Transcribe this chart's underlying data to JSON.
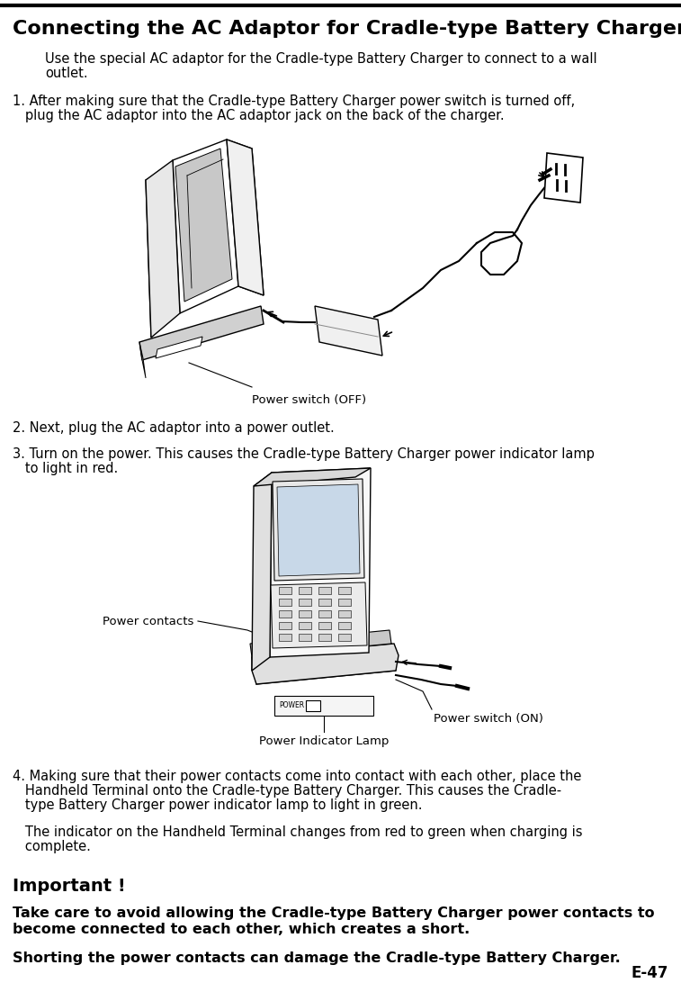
{
  "page_title": "Connecting the AC Adaptor for Cradle-type Battery Charger",
  "bg_color": "#ffffff",
  "text_color": "#000000",
  "title_fontsize": 16,
  "body_fontsize": 10.5,
  "bold_fontsize": 11.5,
  "page_number": "E-47",
  "intro_line1": "Use the special AC adaptor for the Cradle-type Battery Charger to connect to a wall",
  "intro_line2": "outlet.",
  "step1_line1": "1. After making sure that the Cradle-type Battery Charger power switch is turned off,",
  "step1_line2": "   plug the AC adaptor into the AC adaptor jack on the back of the charger.",
  "step2_text": "2. Next, plug the AC adaptor into a power outlet.",
  "step3_line1": "3. Turn on the power. This causes the Cradle-type Battery Charger power indicator lamp",
  "step3_line2": "   to light in red.",
  "step4_line1": "4. Making sure that their power contacts come into contact with each other, place the",
  "step4_line2": "   Handheld Terminal onto the Cradle-type Battery Charger. This causes the Cradle-",
  "step4_line3": "   type Battery Charger power indicator lamp to light in green.",
  "step4b_line1": "   The indicator on the Handheld Terminal changes from red to green when charging is",
  "step4b_line2": "   complete.",
  "important_header": "Important !",
  "important_bold1_line1": "Take care to avoid allowing the Cradle-type Battery Charger power contacts to",
  "important_bold1_line2": "become connected to each other, which creates a short.",
  "important_bold2": "Shorting the power contacts can damage the Cradle-type Battery Charger.",
  "label_power_switch_off": "Power switch (OFF)",
  "label_power_contacts": "Power contacts",
  "label_power_switch_on": "Power switch (ON)",
  "label_power_indicator": "Power Indicator Lamp",
  "label_power": "POWER"
}
